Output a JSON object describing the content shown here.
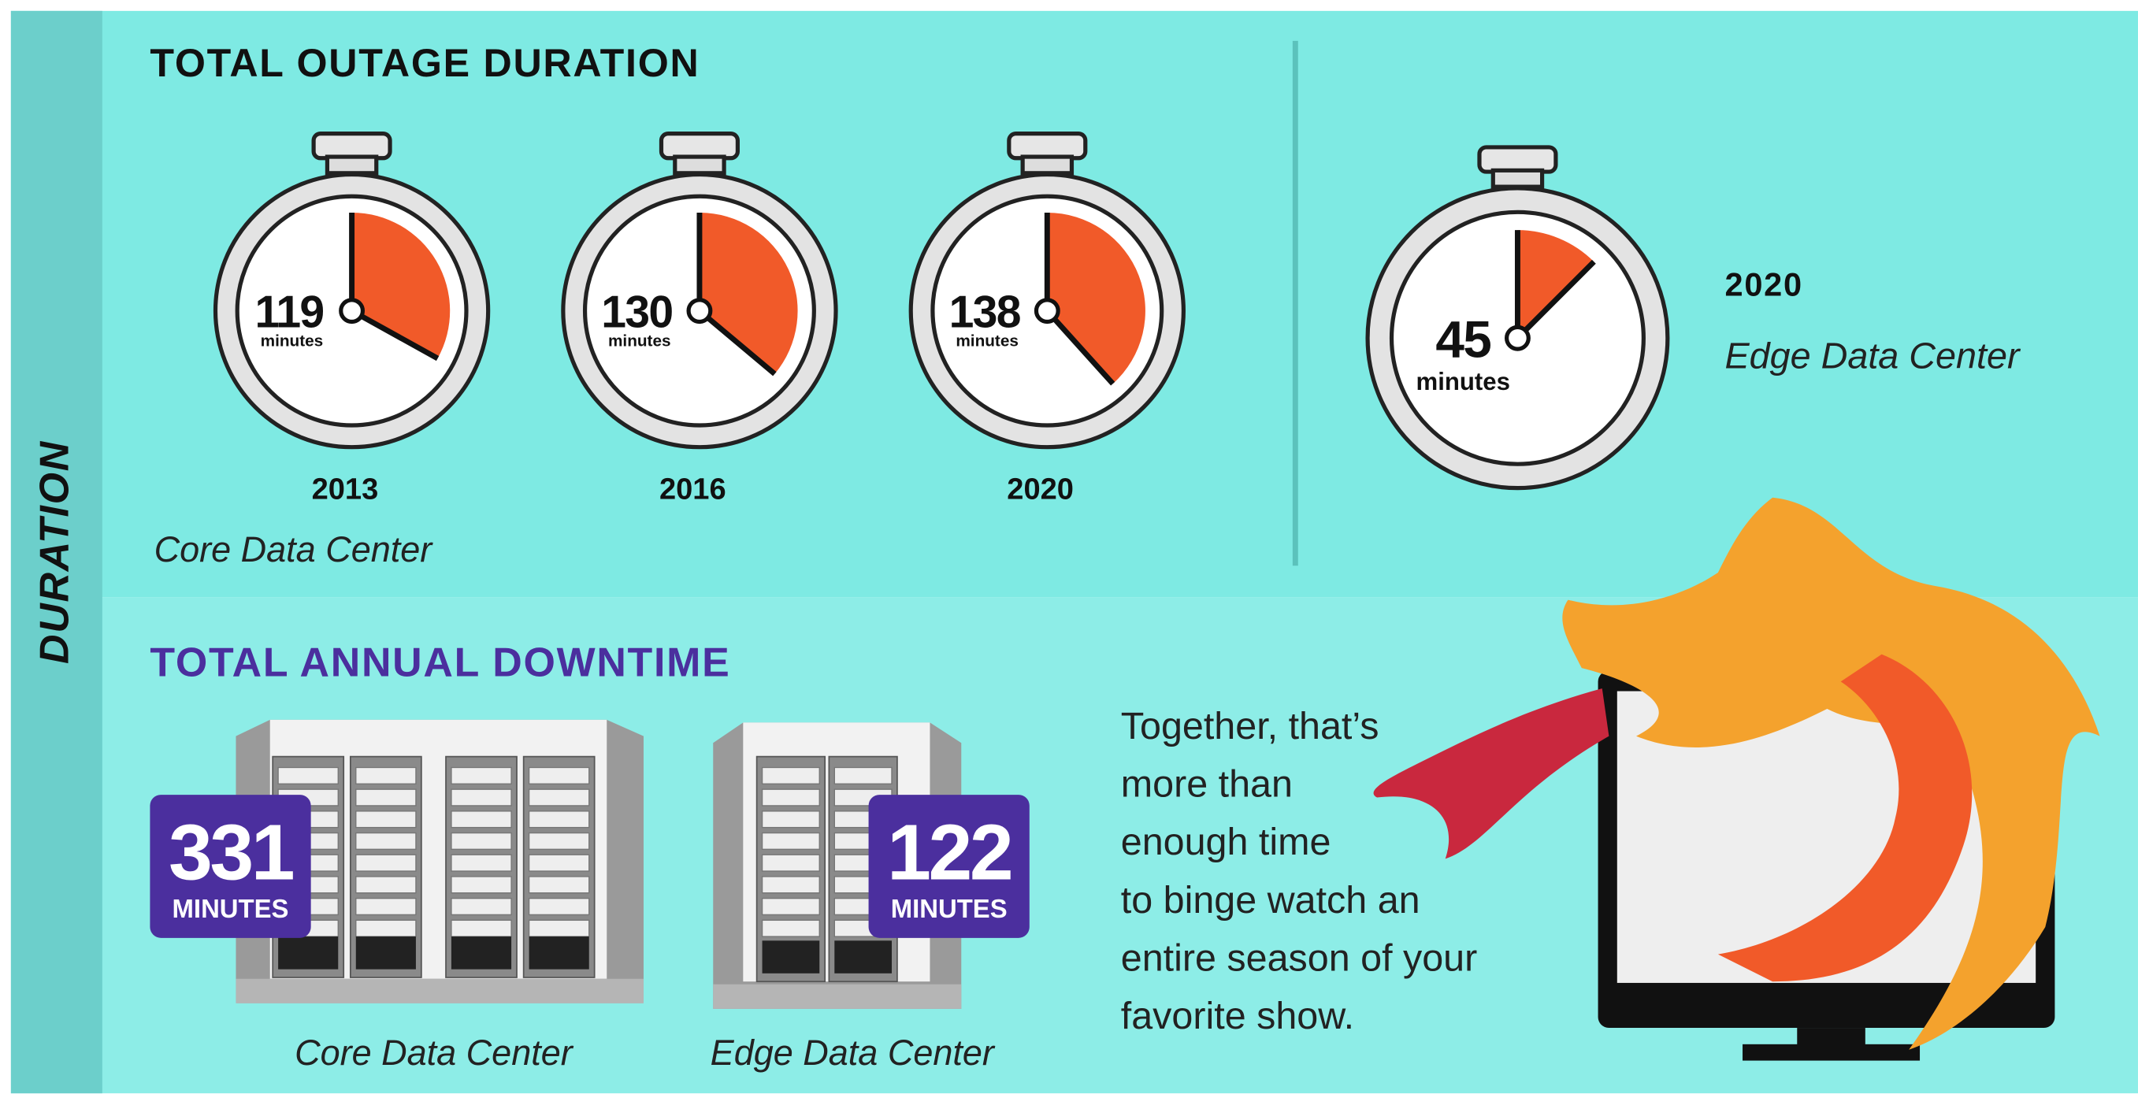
{
  "sidebar": "DURATION",
  "outage": {
    "title": "TOTAL OUTAGE DURATION",
    "unit": "minutes",
    "core": {
      "label": "Core Data Center",
      "timers": [
        {
          "year": "2013",
          "minutes": 119
        },
        {
          "year": "2016",
          "minutes": 130
        },
        {
          "year": "2020",
          "minutes": 138
        }
      ]
    },
    "edge": {
      "year": "2020",
      "label": "Edge Data Center",
      "minutes": 45
    }
  },
  "downtime": {
    "title": "TOTAL ANNUAL DOWNTIME",
    "unit": "MINUTES",
    "items": [
      {
        "minutes": 331,
        "label": "Core Data Center"
      },
      {
        "minutes": 122,
        "label": "Edge Data Center"
      }
    ]
  },
  "note": [
    "Together, that’s",
    "more than",
    "enough time",
    "to binge watch an",
    "entire season of your",
    "favorite show."
  ]
}
